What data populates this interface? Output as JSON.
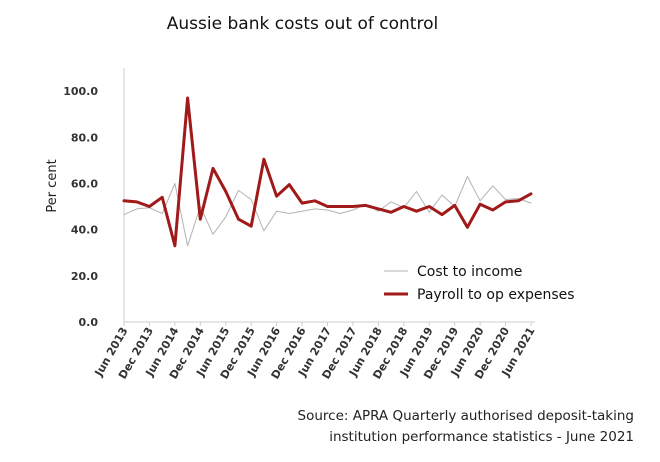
{
  "chart_data": {
    "type": "line",
    "title": "Aussie bank costs out of control",
    "ylabel": "Per cent",
    "xlabel": "",
    "ylim": [
      0,
      110
    ],
    "yticks": [
      "0.0",
      "20.0",
      "40.0",
      "60.0",
      "80.0",
      "100.0"
    ],
    "ytick_values": [
      0,
      20,
      40,
      60,
      80,
      100
    ],
    "x_tick_labels": [
      "Jun 2013",
      "Dec 2013",
      "Jun 2014",
      "Dec 2014",
      "Jun 2015",
      "Dec 2015",
      "Jun 2016",
      "Dec 2016",
      "Jun 2017",
      "Dec 2017",
      "Jun 2018",
      "Dec 2018",
      "Jun 2019",
      "Dec 2019",
      "Jun 2020",
      "Dec 2020",
      "Jun 2021"
    ],
    "x": [
      "Jun 2013",
      "Sep 2013",
      "Dec 2013",
      "Mar 2014",
      "Jun 2014",
      "Sep 2014",
      "Dec 2014",
      "Mar 2015",
      "Jun 2015",
      "Sep 2015",
      "Dec 2015",
      "Mar 2016",
      "Jun 2016",
      "Sep 2016",
      "Dec 2016",
      "Mar 2017",
      "Jun 2017",
      "Sep 2017",
      "Dec 2017",
      "Mar 2018",
      "Jun 2018",
      "Sep 2018",
      "Dec 2018",
      "Mar 2019",
      "Jun 2019",
      "Sep 2019",
      "Dec 2019",
      "Mar 2020",
      "Jun 2020",
      "Sep 2020",
      "Dec 2020",
      "Mar 2021",
      "Jun 2021"
    ],
    "series": [
      {
        "name": "Cost to income",
        "color": "#b3b3b3",
        "values": [
          46.5,
          49.0,
          49.5,
          47.0,
          60.0,
          33.0,
          50.0,
          38.0,
          45.5,
          57.0,
          53.0,
          39.5,
          48.0,
          47.0,
          48.0,
          49.0,
          48.5,
          47.0,
          48.5,
          51.0,
          48.0,
          52.0,
          49.5,
          56.5,
          47.5,
          55.0,
          50.0,
          63.0,
          52.5,
          59.0,
          53.0,
          53.5,
          51.5
        ]
      },
      {
        "name": "Payroll to op expenses",
        "color": "#a11a1a",
        "values": [
          52.5,
          52.0,
          50.0,
          54.0,
          33.0,
          97.0,
          44.5,
          66.5,
          56.5,
          44.5,
          41.5,
          70.5,
          54.5,
          59.5,
          51.5,
          52.5,
          50.0,
          50.0,
          50.0,
          50.5,
          49.0,
          47.5,
          50.0,
          48.0,
          50.0,
          46.5,
          50.5,
          41.0,
          51.0,
          48.5,
          52.0,
          52.5,
          55.5
        ]
      }
    ],
    "legend_position": "bottom-right",
    "grid": false
  },
  "source": {
    "line1": "Source: APRA Quarterly authorised deposit-taking",
    "line2": "institution performance statistics - June 2021"
  }
}
